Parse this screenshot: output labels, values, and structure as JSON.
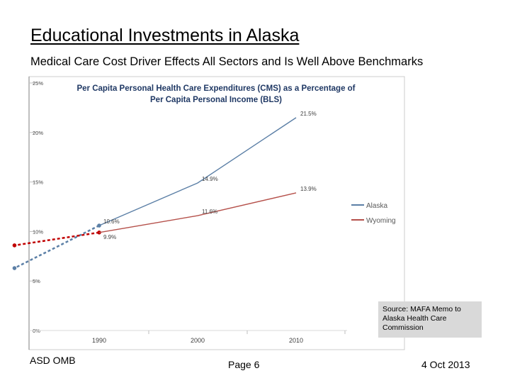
{
  "slide": {
    "title": "Educational Investments in Alaska",
    "subtitle": "Medical Care Cost Driver Effects All Sectors and Is Well Above Benchmarks"
  },
  "chart_data": {
    "type": "line",
    "title": "Per Capita Personal Health Care Expenditures (CMS) as a Percentage of Per Capita Personal Income (BLS)",
    "title_lines": [
      "Per Capita Personal Health Care Expenditures (CMS)  as a Percentage of",
      "Per Capita Personal Income (BLS)"
    ],
    "x": [
      1990,
      2000,
      2010
    ],
    "x_tick_labels": [
      "1990",
      "2000",
      "2010"
    ],
    "y_tick_labels": [
      "0%",
      "5%",
      "10%",
      "15%",
      "20%",
      "25%"
    ],
    "ylim": [
      0,
      25
    ],
    "series": [
      {
        "name": "Alaska",
        "color": "#5b7fa6",
        "values": [
          10.6,
          14.9,
          21.5
        ],
        "labels": [
          "10.6%",
          "14.9%",
          "21.5%"
        ]
      },
      {
        "name": "Wyoming",
        "color": "#b5504a",
        "values": [
          9.9,
          11.6,
          13.9
        ],
        "labels": [
          "9.9%",
          "11.6%",
          "13.9%"
        ]
      }
    ],
    "extrapolation": [
      {
        "series": "Alaska",
        "color": "#5b7fa6",
        "from": [
          1990,
          10.6
        ],
        "to": [
          1981.4,
          6.3
        ]
      },
      {
        "series": "Wyoming",
        "color": "#c00000",
        "from": [
          1990,
          9.9
        ],
        "to": [
          1981.4,
          8.6
        ]
      }
    ],
    "legend": "right"
  },
  "source": "Source:  MAFA Memo to Alaska Health Care Commission",
  "footer": {
    "left": "ASD OMB",
    "center": "Page 6",
    "right": "4 Oct 2013"
  }
}
